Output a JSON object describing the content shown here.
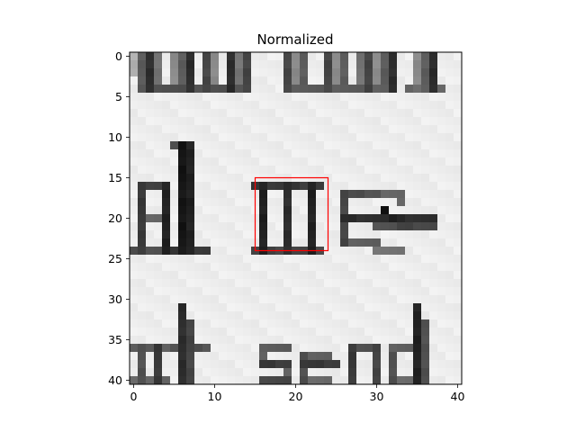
{
  "chart_data": {
    "type": "heatmap",
    "title": "Normalized",
    "xlabel": "",
    "ylabel": "",
    "colormap": "grayscale",
    "grid": false,
    "image_size": [
      41,
      41
    ],
    "xlim": [
      -0.5,
      40.5
    ],
    "ylim": [
      40.5,
      -0.5
    ],
    "x_ticks": [
      0,
      10,
      20,
      30,
      40
    ],
    "y_ticks": [
      0,
      5,
      10,
      15,
      20,
      25,
      30,
      35,
      40
    ],
    "image_content": "scanned text fragment (image shows cropped words; top row partially cut off, middle row 'al mes-', bottom row 'at send')",
    "highlight_box": {
      "x0": 15,
      "y0": 15,
      "x1": 24,
      "y1": 24,
      "color": "#ff0000"
    }
  }
}
